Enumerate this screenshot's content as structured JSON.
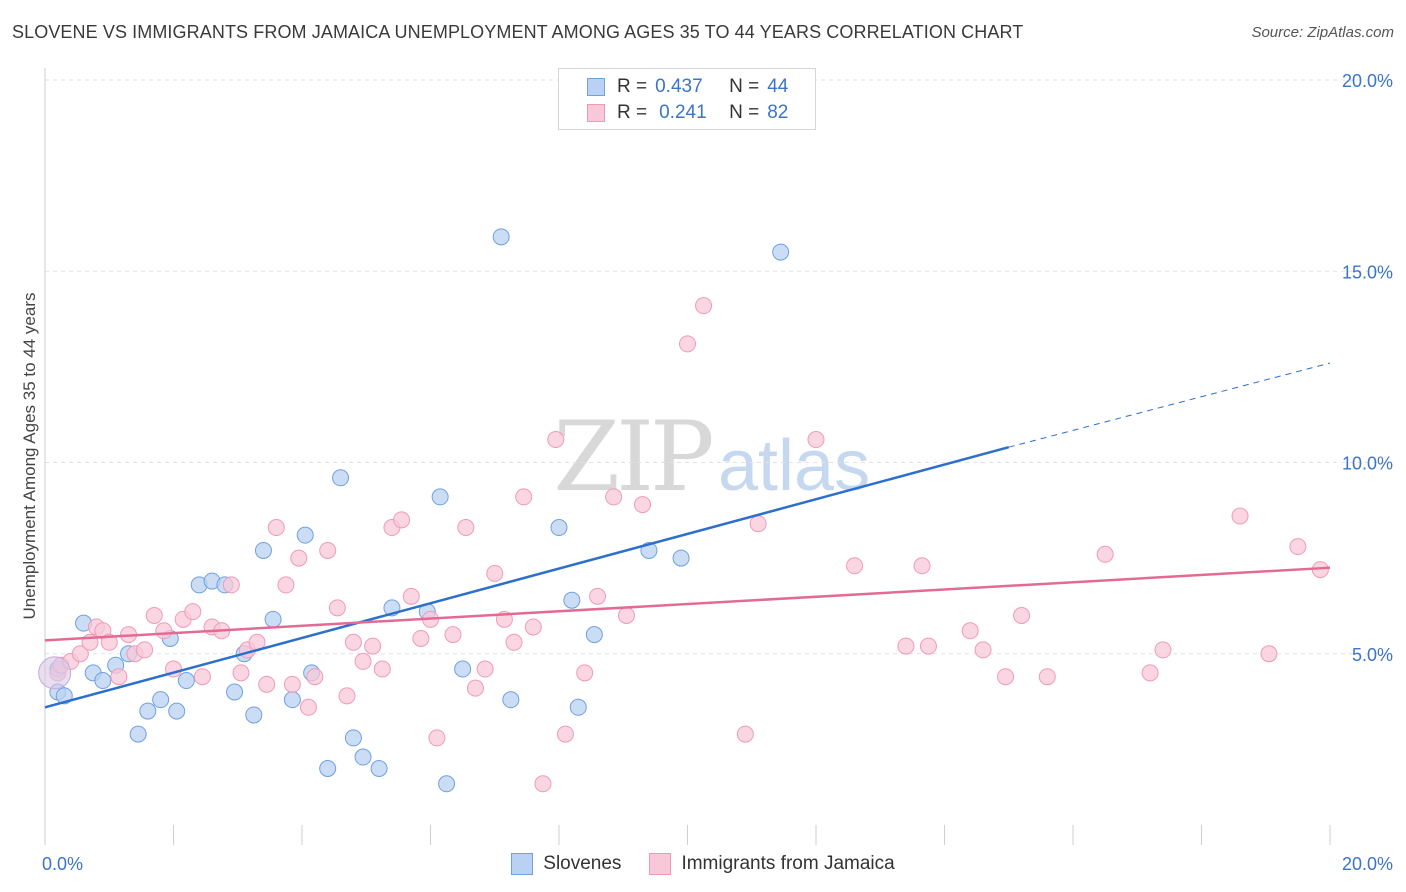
{
  "title": "SLOVENE VS IMMIGRANTS FROM JAMAICA UNEMPLOYMENT AMONG AGES 35 TO 44 YEARS CORRELATION CHART",
  "source": "Source: ZipAtlas.com",
  "watermark": {
    "zip": "ZIP",
    "atlas": "atlas"
  },
  "legend_top": [
    {
      "r_label": "R =",
      "r_value": "0.437",
      "n_label": "N =",
      "n_value": "44"
    },
    {
      "r_label": "R =",
      "r_value": "0.241",
      "n_label": "N =",
      "n_value": "82"
    }
  ],
  "chart_data": {
    "type": "scatter",
    "title": "SLOVENE VS IMMIGRANTS FROM JAMAICA UNEMPLOYMENT AMONG AGES 35 TO 44 YEARS CORRELATION CHART",
    "xlabel": "",
    "ylabel": "Unemployment Among Ages 35 to 44 years",
    "xlim": [
      0,
      20
    ],
    "ylim": [
      0,
      20
    ],
    "x_ticks": [
      "0.0%",
      "20.0%"
    ],
    "y_ticks": [
      "5.0%",
      "10.0%",
      "15.0%",
      "20.0%"
    ],
    "grid": true,
    "legend_position": "bottom",
    "series": [
      {
        "name": "Slovenes",
        "color": "#6fa0e0",
        "fill": "#b9d1f2",
        "line_color": "#2c6fcc",
        "trend": {
          "x": [
            0,
            15
          ],
          "y": [
            3.6,
            10.4
          ],
          "dashed_to": [
            20,
            12.6
          ]
        },
        "points": [
          [
            0.2,
            4.6
          ],
          [
            0.2,
            4.0
          ],
          [
            0.3,
            3.9
          ],
          [
            0.6,
            5.8
          ],
          [
            0.75,
            4.5
          ],
          [
            0.9,
            4.3
          ],
          [
            1.1,
            4.7
          ],
          [
            1.3,
            5.0
          ],
          [
            1.45,
            2.9
          ],
          [
            1.6,
            3.5
          ],
          [
            1.8,
            3.8
          ],
          [
            1.95,
            5.4
          ],
          [
            2.05,
            3.5
          ],
          [
            2.2,
            4.3
          ],
          [
            2.4,
            6.8
          ],
          [
            2.6,
            6.9
          ],
          [
            2.8,
            6.8
          ],
          [
            2.95,
            4.0
          ],
          [
            3.1,
            5.0
          ],
          [
            3.25,
            3.4
          ],
          [
            3.4,
            7.7
          ],
          [
            3.55,
            5.9
          ],
          [
            3.85,
            3.8
          ],
          [
            4.05,
            8.1
          ],
          [
            4.15,
            4.5
          ],
          [
            4.4,
            2.0
          ],
          [
            4.6,
            9.6
          ],
          [
            4.8,
            2.8
          ],
          [
            4.95,
            2.3
          ],
          [
            5.2,
            2.0
          ],
          [
            5.4,
            6.2
          ],
          [
            5.95,
            6.1
          ],
          [
            6.15,
            9.1
          ],
          [
            6.25,
            1.6
          ],
          [
            6.5,
            4.6
          ],
          [
            7.1,
            15.9
          ],
          [
            7.25,
            3.8
          ],
          [
            8.0,
            8.3
          ],
          [
            8.2,
            6.4
          ],
          [
            8.3,
            3.6
          ],
          [
            8.55,
            5.5
          ],
          [
            9.4,
            7.7
          ],
          [
            9.9,
            7.5
          ],
          [
            11.45,
            15.5
          ]
        ]
      },
      {
        "name": "Immigrants from Jamaica",
        "color": "#f09ab8",
        "fill": "#f8c8d8",
        "line_color": "#e46a96",
        "trend": {
          "x": [
            0,
            20
          ],
          "y": [
            5.35,
            7.25
          ]
        },
        "points": [
          [
            0.2,
            4.5
          ],
          [
            0.25,
            4.7
          ],
          [
            0.4,
            4.8
          ],
          [
            0.55,
            5.0
          ],
          [
            0.7,
            5.3
          ],
          [
            0.8,
            5.7
          ],
          [
            0.9,
            5.6
          ],
          [
            1.0,
            5.3
          ],
          [
            1.15,
            4.4
          ],
          [
            1.3,
            5.5
          ],
          [
            1.4,
            5.0
          ],
          [
            1.55,
            5.1
          ],
          [
            1.7,
            6.0
          ],
          [
            1.85,
            5.6
          ],
          [
            2.0,
            4.6
          ],
          [
            2.15,
            5.9
          ],
          [
            2.3,
            6.1
          ],
          [
            2.45,
            4.4
          ],
          [
            2.6,
            5.7
          ],
          [
            2.75,
            5.6
          ],
          [
            2.9,
            6.8
          ],
          [
            3.05,
            4.5
          ],
          [
            3.15,
            5.1
          ],
          [
            3.3,
            5.3
          ],
          [
            3.45,
            4.2
          ],
          [
            3.6,
            8.3
          ],
          [
            3.75,
            6.8
          ],
          [
            3.85,
            4.2
          ],
          [
            3.95,
            7.5
          ],
          [
            4.1,
            3.6
          ],
          [
            4.2,
            4.4
          ],
          [
            4.4,
            7.7
          ],
          [
            4.55,
            6.2
          ],
          [
            4.7,
            3.9
          ],
          [
            4.8,
            5.3
          ],
          [
            4.95,
            4.8
          ],
          [
            5.1,
            5.2
          ],
          [
            5.25,
            4.6
          ],
          [
            5.4,
            8.3
          ],
          [
            5.55,
            8.5
          ],
          [
            5.7,
            6.5
          ],
          [
            5.85,
            5.4
          ],
          [
            6.0,
            5.9
          ],
          [
            6.1,
            2.8
          ],
          [
            6.35,
            5.5
          ],
          [
            6.55,
            8.3
          ],
          [
            6.7,
            4.1
          ],
          [
            6.85,
            4.6
          ],
          [
            7.0,
            7.1
          ],
          [
            7.15,
            5.9
          ],
          [
            7.3,
            5.3
          ],
          [
            7.45,
            9.1
          ],
          [
            7.6,
            5.7
          ],
          [
            7.75,
            1.6
          ],
          [
            7.95,
            10.6
          ],
          [
            8.1,
            2.9
          ],
          [
            8.4,
            4.5
          ],
          [
            8.6,
            6.5
          ],
          [
            8.85,
            9.1
          ],
          [
            9.05,
            6.0
          ],
          [
            9.3,
            8.9
          ],
          [
            10.0,
            13.1
          ],
          [
            10.25,
            14.1
          ],
          [
            10.9,
            2.9
          ],
          [
            11.1,
            8.4
          ],
          [
            12.0,
            10.6
          ],
          [
            12.6,
            7.3
          ],
          [
            13.4,
            5.2
          ],
          [
            13.65,
            7.3
          ],
          [
            13.75,
            5.2
          ],
          [
            14.4,
            5.6
          ],
          [
            14.6,
            5.1
          ],
          [
            14.95,
            4.4
          ],
          [
            15.2,
            6.0
          ],
          [
            15.6,
            4.4
          ],
          [
            16.5,
            7.6
          ],
          [
            17.2,
            4.5
          ],
          [
            17.4,
            5.1
          ],
          [
            18.6,
            8.6
          ],
          [
            19.05,
            5.0
          ],
          [
            19.5,
            7.8
          ],
          [
            19.85,
            7.2
          ]
        ]
      }
    ]
  },
  "legend_bottom": [
    {
      "label": "Slovenes",
      "fill": "#b9d1f2",
      "border": "#6fa0e0"
    },
    {
      "label": "Immigrants from Jamaica",
      "fill": "#f8c8d8",
      "border": "#f09ab8"
    }
  ]
}
